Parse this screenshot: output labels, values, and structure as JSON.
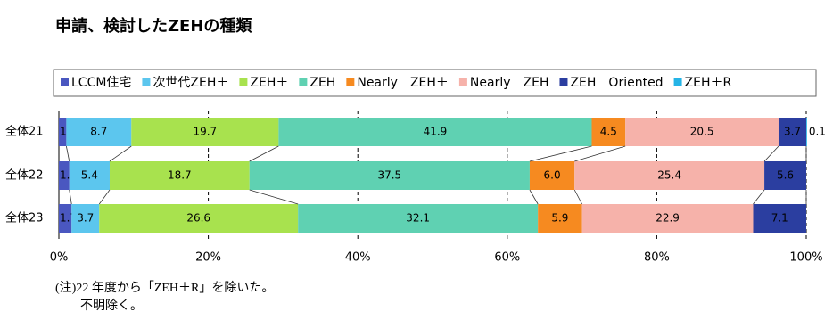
{
  "chart_data": {
    "type": "stacked_bar_horizontal",
    "title": "申請、検討したZEHの種類",
    "categories": [
      "全体21",
      "全体22",
      "全体23"
    ],
    "series": [
      {
        "name": "LCCM住宅",
        "color": "#4a57c0",
        "values": [
          1.0,
          1.4,
          1.7
        ],
        "value_labels": [
          "1.0",
          "1.4",
          "1.7"
        ]
      },
      {
        "name": "次世代ZEH＋",
        "color": "#5cc6ee",
        "values": [
          8.7,
          5.4,
          3.7
        ],
        "value_labels": [
          "8.7",
          "5.4",
          "3.7"
        ]
      },
      {
        "name": "ZEH＋",
        "color": "#a8e24e",
        "values": [
          19.7,
          18.7,
          26.6
        ],
        "value_labels": [
          "19.7",
          "18.7",
          "26.6"
        ]
      },
      {
        "name": "ZEH",
        "color": "#5fd1b2",
        "values": [
          41.9,
          37.5,
          32.1
        ],
        "value_labels": [
          "41.9",
          "37.5",
          "32.1"
        ]
      },
      {
        "name": "Nearly　ZEH＋",
        "color": "#f68a20",
        "values": [
          4.5,
          6.0,
          5.9
        ],
        "value_labels": [
          "4.5",
          "6.0",
          "5.9"
        ]
      },
      {
        "name": "Nearly　ZEH",
        "color": "#f6b2aa",
        "values": [
          20.5,
          25.4,
          22.9
        ],
        "value_labels": [
          "20.5",
          "25.4",
          "22.9"
        ]
      },
      {
        "name": "ZEH　Oriented",
        "color": "#2b3ea0",
        "values": [
          3.7,
          5.6,
          7.1
        ],
        "value_labels": [
          "3.7",
          "5.6",
          "7.1"
        ]
      },
      {
        "name": "ZEH＋R",
        "color": "#25b4e6",
        "values": [
          0.1,
          null,
          null
        ],
        "value_labels": [
          "0.1",
          null,
          null
        ]
      }
    ],
    "xlim": [
      0,
      100
    ],
    "xticks": [
      {
        "value": 0,
        "label": "0%"
      },
      {
        "value": 20,
        "label": "20%"
      },
      {
        "value": 40,
        "label": "40%"
      },
      {
        "value": 60,
        "label": "60%"
      },
      {
        "value": 80,
        "label": "80%"
      },
      {
        "value": 100,
        "label": "100%"
      }
    ],
    "grid": true,
    "legend": "top",
    "notes": [
      "(注)22 年度から「ZEH＋R」を除いた。",
      "不明除く。"
    ]
  }
}
